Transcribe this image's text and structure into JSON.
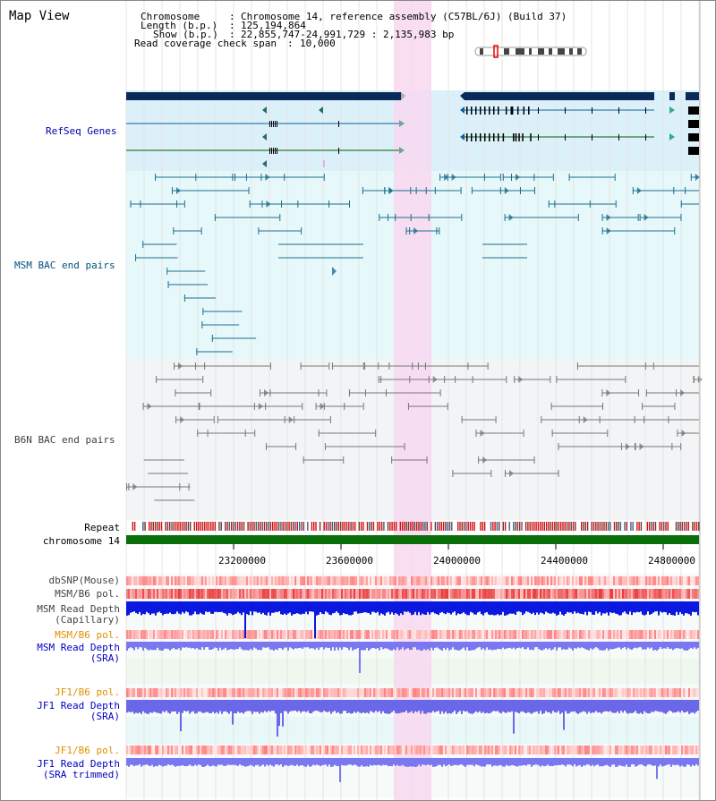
{
  "page": {
    "title": "Map View"
  },
  "header": {
    "chromosome_key": "Chromosome",
    "chromosome_val": "Chromosome 14, reference assembly (C57BL/6J) (Build 37)",
    "length_key": "Length (b.p.)",
    "length_val": "125,194,864",
    "show_key": "Show (b.p.)",
    "show_val": "22,855,747-24,991,729 : 2,135,983 bp",
    "coverage_key": "Read coverage check span",
    "coverage_val": "10,000"
  },
  "tracks": {
    "refseq": "RefSeq Genes",
    "msm_bac": "MSM BAC end pairs",
    "b6n_bac": "B6N BAC end pairs",
    "repeat": "Repeat",
    "chromosome": "chromosome 14",
    "dbsnp": "dbSNP(Mouse)",
    "msm_b6_pol_1": "MSM/B6 pol.",
    "msm_depth_cap_1": "MSM Read Depth",
    "msm_depth_cap_2": "(Capillary)",
    "msm_b6_pol_2": "MSM/B6 pol.",
    "msm_depth_sra_1": "MSM Read Depth",
    "msm_depth_sra_2": "(SRA)",
    "jf1_b6_pol_1": "JF1/B6 pol.",
    "jf1_depth_sra_1": "JF1 Read Depth",
    "jf1_depth_sra_2": "(SRA)",
    "jf1_b6_pol_2": "JF1/B6 pol.",
    "jf1_depth_trim_1": "JF1 Read Depth",
    "jf1_depth_trim_2": "(SRA trimmed)"
  },
  "axis": {
    "ticks": [
      "23200000",
      "23600000",
      "24000000",
      "24400000",
      "24800000"
    ]
  },
  "colors": {
    "refseq_label": "#0000b0",
    "msm_label": "#005080",
    "b6n_label": "#404040",
    "orange_label": "#e09000",
    "blue_label": "#0000c0",
    "highlight": "#f8d8f0",
    "chromosome_bar": "#0a6e0a"
  }
}
